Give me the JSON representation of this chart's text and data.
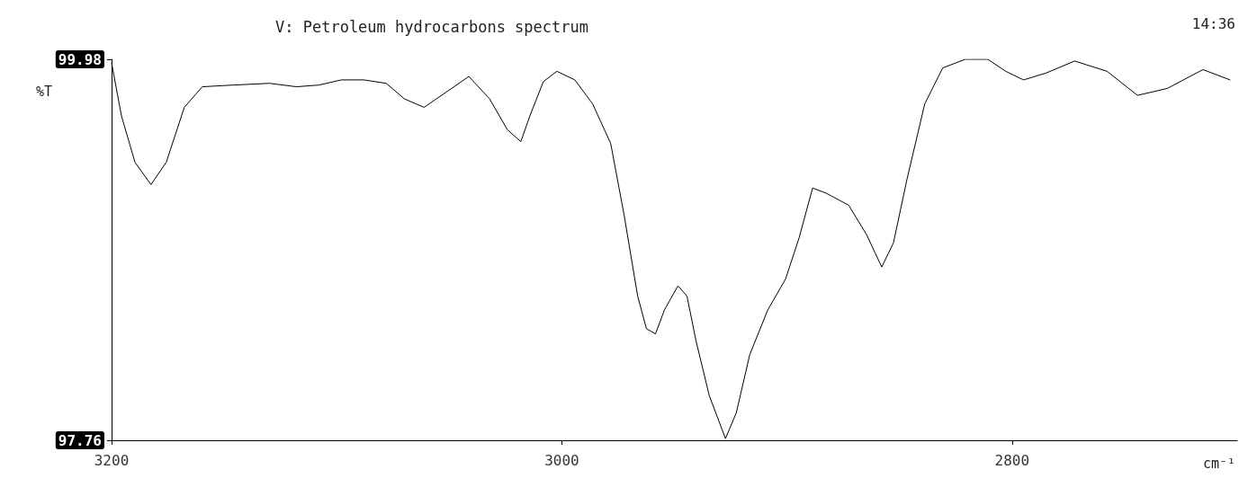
{
  "chart_data": {
    "type": "line",
    "title": "V: Petroleum hydrocarbons spectrum",
    "xlabel": "cm⁻¹",
    "ylabel": "%T",
    "annotations": [
      "14:36"
    ],
    "x": [
      3200,
      3195.6,
      3189.6,
      3182.5,
      3175.7,
      3167.7,
      3159.7,
      3145.8,
      3129.8,
      3117.9,
      3107.9,
      3097.9,
      3087.9,
      3078,
      3070,
      3061.2,
      3050.1,
      3041.3,
      3032.1,
      3024.2,
      3018.2,
      3014.2,
      3008.2,
      3002.2,
      2994.2,
      2986.3,
      2978.3,
      2972.3,
      2966.3,
      2962.4,
      2958.4,
      2954.4,
      2948.4,
      2944.4,
      2940.4,
      2934.5,
      2927.3,
      2922.5,
      2916.5,
      2908.5,
      2900.6,
      2894.6,
      2888.6,
      2882.6,
      2872.6,
      2864.7,
      2857.9,
      2852.7,
      2846.7,
      2838.8,
      2830.8,
      2820.8,
      2810.8,
      2802.8,
      2794.9,
      2784.9,
      2772.2,
      2757.8,
      2744.3,
      2731.1,
      2715.2,
      2703.2
    ],
    "series": [
      {
        "color": "#000000",
        "values": [
          99.96,
          99.65,
          99.38,
          99.25,
          99.38,
          99.7,
          99.82,
          99.83,
          99.84,
          99.82,
          99.83,
          99.86,
          99.86,
          99.84,
          99.75,
          99.7,
          99.8,
          99.88,
          99.75,
          99.57,
          99.5,
          99.65,
          99.85,
          99.91,
          99.86,
          99.72,
          99.49,
          99.07,
          98.6,
          98.41,
          98.38,
          98.52,
          98.66,
          98.6,
          98.34,
          98.02,
          97.77,
          97.92,
          98.26,
          98.52,
          98.7,
          98.94,
          99.23,
          99.2,
          99.13,
          98.96,
          98.77,
          98.91,
          99.28,
          99.72,
          99.93,
          99.98,
          99.98,
          99.91,
          99.86,
          99.9,
          99.97,
          99.91,
          99.77,
          99.81,
          99.92,
          99.86
        ]
      }
    ],
    "xlim": [
      3200,
      2700
    ],
    "xticks": [
      3200,
      3000,
      2800
    ],
    "ylim": [
      97.76,
      99.98
    ],
    "yticks": [
      97.76,
      99.98
    ],
    "grid": false,
    "marker": "none",
    "line_style": "solid"
  }
}
